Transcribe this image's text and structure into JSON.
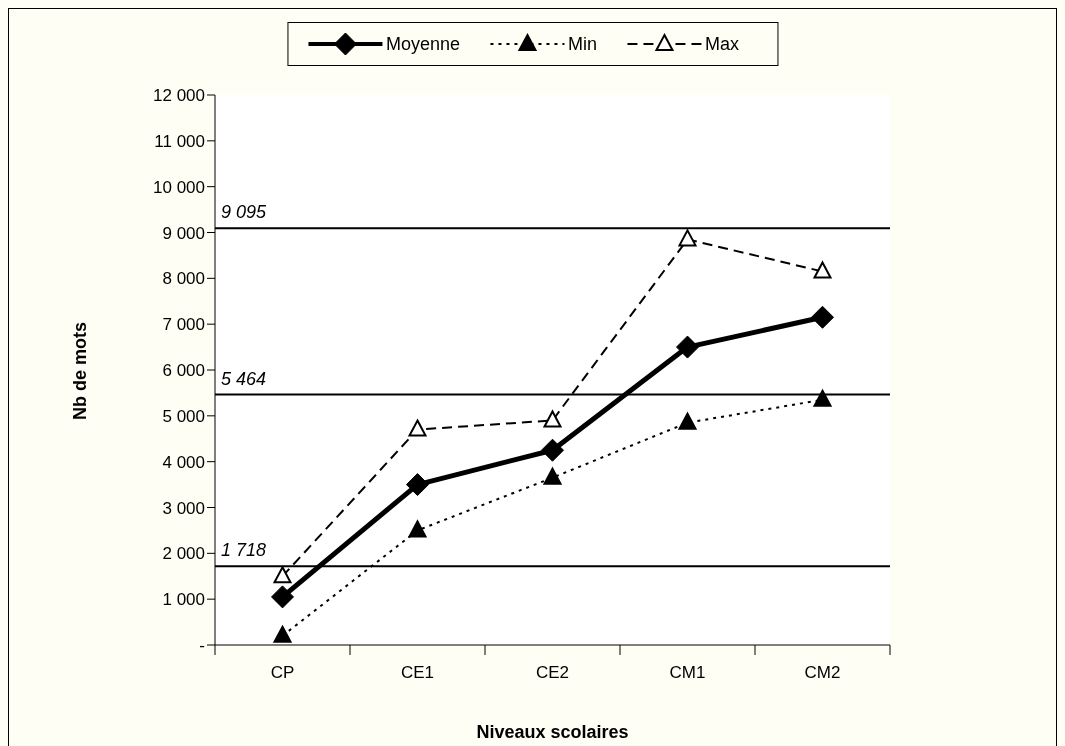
{
  "chart_data": {
    "type": "line",
    "xlabel": "Niveaux scolaires",
    "ylabel": "Nb de mots",
    "categories": [
      "CP",
      "CE1",
      "CE2",
      "CM1",
      "CM2"
    ],
    "series": [
      {
        "name": "Moyenne",
        "color": "#000000",
        "values": [
          1050,
          3500,
          4250,
          6500,
          7150
        ],
        "marker": "diamond",
        "line_style": "solid"
      },
      {
        "name": "Min",
        "color": "#000000",
        "values": [
          200,
          2500,
          3650,
          4850,
          5350
        ],
        "marker": "triangle",
        "line_style": "dotted"
      },
      {
        "name": "Max",
        "color": "#000000",
        "colors": [
          "#ffffff",
          "#ffffff",
          "#ffffff",
          "#ffffff",
          "#ffffff"
        ],
        "values": [
          1500,
          4700,
          4900,
          8850,
          8150
        ],
        "marker": "triangle",
        "line_style": "dashed"
      }
    ],
    "ref_lines": [
      {
        "axis": "y",
        "value": 1718,
        "label": "1 718",
        "color": "#000000",
        "line_style": "solid"
      },
      {
        "axis": "y",
        "value": 5464,
        "label": "5 464",
        "color": "#000000",
        "line_style": "solid"
      },
      {
        "axis": "y",
        "value": 9095,
        "label": "9 095",
        "color": "#000000",
        "line_style": "solid"
      }
    ],
    "ylim": [
      0,
      12000
    ],
    "yticks": [
      {
        "value": 0,
        "label": "-"
      },
      {
        "value": 1000,
        "label": "1 000"
      },
      {
        "value": 2000,
        "label": "2 000"
      },
      {
        "value": 3000,
        "label": "3 000"
      },
      {
        "value": 4000,
        "label": "4 000"
      },
      {
        "value": 5000,
        "label": "5 000"
      },
      {
        "value": 6000,
        "label": "6 000"
      },
      {
        "value": 7000,
        "label": "7 000"
      },
      {
        "value": 8000,
        "label": "8 000"
      },
      {
        "value": 9000,
        "label": "9 000"
      },
      {
        "value": 10000,
        "label": "10 000"
      },
      {
        "value": 11000,
        "label": "11 000"
      },
      {
        "value": 12000,
        "label": "12 000"
      }
    ],
    "legend": "top"
  }
}
